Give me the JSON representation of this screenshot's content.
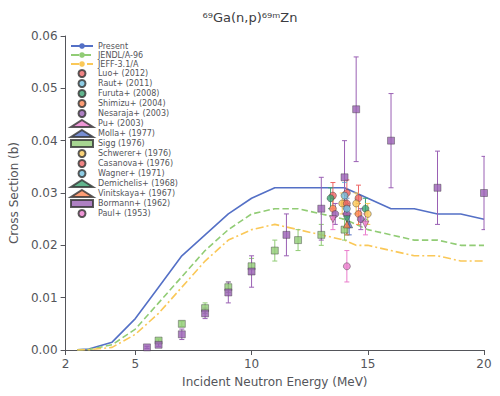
{
  "chart_data": {
    "type": "line",
    "title": "⁶⁹Ga(n,p)⁶⁹ᵐZn",
    "x_label": "Incident Neutron Energy (MeV)",
    "y_label": "Cross Section (b)",
    "xlim": [
      2,
      20
    ],
    "ylim": [
      0,
      0.06
    ],
    "xticks": [
      2,
      5,
      10,
      15,
      20
    ],
    "yticks": [
      {
        "value": 0,
        "label": "0.00"
      },
      0.01,
      0.02,
      0.03,
      0.04,
      0.05,
      0.06
    ],
    "grid": false,
    "legend": "upper left",
    "series": [
      {
        "name": "Present",
        "type": "line",
        "line_style": "solid",
        "x": [
          2.5,
          3.0,
          4.0,
          5.0,
          6.0,
          7.0,
          8.0,
          9.0,
          10.0,
          11.0,
          12.0,
          13.0,
          14.0,
          14.5,
          15.0,
          16.0,
          17.0,
          18.0,
          19.0,
          20.0
        ],
        "values": [
          5e-05,
          0.0002,
          0.0015,
          0.006,
          0.012,
          0.018,
          0.022,
          0.026,
          0.029,
          0.031,
          0.031,
          0.031,
          0.031,
          0.03,
          0.029,
          0.027,
          0.027,
          0.026,
          0.026,
          0.025
        ]
      },
      {
        "name": "JENDL/A-96",
        "type": "line",
        "line_style": "dashed",
        "x": [
          2.5,
          3.0,
          4.0,
          5.0,
          6.0,
          7.0,
          8.0,
          9.0,
          10.0,
          11.0,
          12.0,
          13.0,
          14.0,
          14.5,
          15.0,
          16.0,
          17.0,
          18.0,
          19.0,
          20.0
        ],
        "values": [
          3e-05,
          0.0001,
          0.001,
          0.004,
          0.009,
          0.014,
          0.019,
          0.023,
          0.026,
          0.027,
          0.027,
          0.026,
          0.025,
          0.024,
          0.023,
          0.022,
          0.021,
          0.021,
          0.02,
          0.02
        ]
      },
      {
        "name": "JEFF-3.1/A",
        "type": "line",
        "line_style": "dashdot",
        "x": [
          2.5,
          3.0,
          4.0,
          5.0,
          6.0,
          7.0,
          8.0,
          9.0,
          10.0,
          11.0,
          12.0,
          13.0,
          14.0,
          14.5,
          15.0,
          16.0,
          17.0,
          18.0,
          19.0,
          20.0
        ],
        "values": [
          1e-05,
          5e-05,
          0.0005,
          0.003,
          0.007,
          0.012,
          0.017,
          0.021,
          0.023,
          0.024,
          0.023,
          0.022,
          0.021,
          0.02,
          0.02,
          0.019,
          0.018,
          0.018,
          0.017,
          0.017
        ]
      },
      {
        "name": "Luo+ (2012)",
        "type": "scatter",
        "marker": "circle",
        "x": [
          13.5,
          14.1,
          14.6
        ],
        "values": [
          0.0295,
          0.03,
          0.029
        ],
        "errors": [
          0.0025,
          0.0025,
          0.0025
        ]
      },
      {
        "name": "Raut+ (2011)",
        "type": "scatter",
        "marker": "circle",
        "x": [
          14.0
        ],
        "values": [
          0.0295
        ],
        "errors": [
          0.0025
        ]
      },
      {
        "name": "Furuta+ (2008)",
        "type": "scatter",
        "marker": "circle",
        "x": [
          13.4,
          14.9
        ],
        "values": [
          0.029,
          0.027
        ],
        "errors": [
          0.002,
          0.002
        ]
      },
      {
        "name": "Shimizu+ (2004)",
        "type": "scatter",
        "marker": "circle",
        "x": [
          13.5,
          14.0,
          14.6
        ],
        "values": [
          0.027,
          0.028,
          0.026
        ],
        "errors": [
          0.002,
          0.002,
          0.002
        ]
      },
      {
        "name": "Nesaraja+ (2003)",
        "type": "scatter",
        "marker": "circle",
        "x": [
          13.6,
          14.1,
          14.7
        ],
        "values": [
          0.026,
          0.026,
          0.025
        ],
        "errors": [
          0.002,
          0.002,
          0.002
        ]
      },
      {
        "name": "Pu+ (2003)",
        "type": "scatter",
        "marker": "triangle_down",
        "x": [
          13.5,
          14.1,
          14.9
        ],
        "values": [
          0.025,
          0.027,
          0.024
        ],
        "errors": [
          0.002,
          0.002,
          0.002
        ]
      },
      {
        "name": "Molla+ (1977)",
        "type": "scatter",
        "marker": "triangle",
        "x": [
          14.2
        ],
        "values": [
          0.024
        ],
        "errors": [
          0.002
        ]
      },
      {
        "name": "Sigg (1976)",
        "type": "scatter",
        "marker": "square",
        "x": [
          6.0,
          7.0,
          8.0,
          9.0,
          10.0,
          11.0,
          12.0,
          13.0,
          14.0
        ],
        "values": [
          0.0018,
          0.005,
          0.008,
          0.012,
          0.016,
          0.019,
          0.021,
          0.022,
          0.023
        ],
        "errors": [
          0.0003,
          0.0005,
          0.001,
          0.001,
          0.0015,
          0.002,
          0.002,
          0.002,
          0.002
        ]
      },
      {
        "name": "Schwerer+ (1976)",
        "type": "scatter",
        "marker": "circle",
        "x": [
          13.9,
          14.5,
          15.0
        ],
        "values": [
          0.028,
          0.028,
          0.026
        ],
        "errors": [
          0.002,
          0.002,
          0.002
        ]
      },
      {
        "name": "Casanova+ (1976)",
        "type": "scatter",
        "marker": "circle",
        "x": [
          14.1
        ],
        "values": [
          0.028
        ],
        "errors": [
          0.002
        ]
      },
      {
        "name": "Wagner+ (1971)",
        "type": "scatter",
        "marker": "circle",
        "x": [
          14.1
        ],
        "values": [
          0.027
        ],
        "errors": [
          0.002
        ]
      },
      {
        "name": "Demichelis+ (1968)",
        "type": "scatter",
        "marker": "triangle_down",
        "x": [
          14.1
        ],
        "values": [
          0.025
        ],
        "errors": [
          0.003
        ]
      },
      {
        "name": "Vinitskaya+ (1967)",
        "type": "scatter",
        "marker": "triangle",
        "x": [
          14.1
        ],
        "values": [
          0.024
        ],
        "errors": [
          0.002
        ]
      },
      {
        "name": "Bormann+ (1962)",
        "type": "scatter",
        "marker": "square",
        "x": [
          5.5,
          6.0,
          7.0,
          8.0,
          9.0,
          10.0,
          11.5,
          13.0,
          14.0,
          14.5,
          16.0,
          18.0,
          20.0
        ],
        "values": [
          0.0005,
          0.001,
          0.003,
          0.007,
          0.011,
          0.015,
          0.022,
          0.027,
          0.033,
          0.046,
          0.04,
          0.031,
          0.03
        ],
        "errors": [
          0.0002,
          0.0003,
          0.001,
          0.001,
          0.002,
          0.003,
          0.004,
          0.006,
          0.007,
          0.01,
          0.009,
          0.007,
          0.007
        ]
      },
      {
        "name": "Paul+ (1953)",
        "type": "scatter",
        "marker": "circle",
        "x": [
          14.1
        ],
        "values": [
          0.016
        ],
        "errors": [
          0.003
        ]
      }
    ]
  }
}
